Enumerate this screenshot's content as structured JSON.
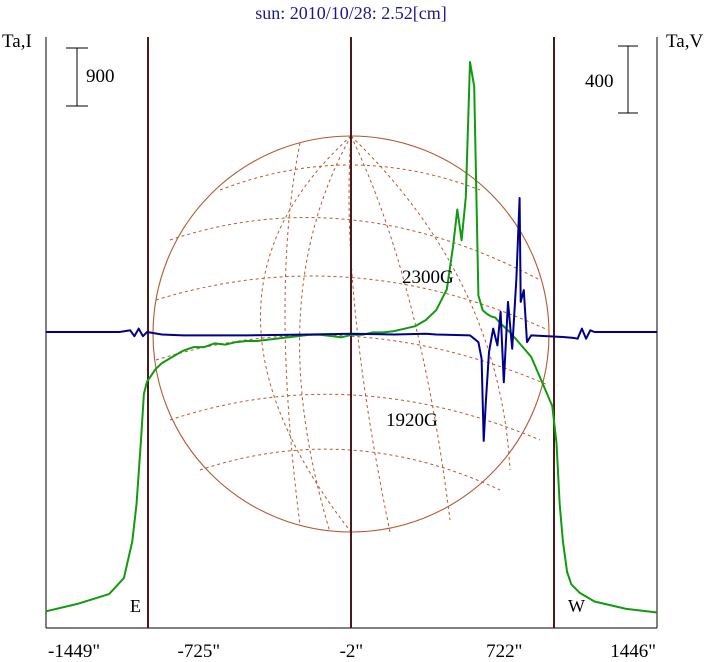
{
  "chart_data": {
    "type": "line",
    "title": "sun: 2010/10/28: 2.52[cm]",
    "left_axis_label": "Ta,I",
    "right_axis_label": "Ta,V",
    "scale_bars": {
      "left": "900",
      "right": "400"
    },
    "x_ticks": [
      "-1449\"",
      "-725\"",
      "-2\"",
      "722\"",
      "1446\""
    ],
    "x_range": [
      -1449,
      1446
    ],
    "limb_labels": {
      "east": "E",
      "west": "W"
    },
    "annotations": [
      {
        "text": "2300G",
        "x": 780,
        "sign": "positive"
      },
      {
        "text": "1920G",
        "x": 620,
        "sign": "negative"
      }
    ],
    "colors": {
      "title": "#1a1a8c",
      "intensity": "#109a10",
      "polarization": "#00008b",
      "grid_lines": "#4a1a1a",
      "sun_disk": "#b45a32",
      "axes": "#000000"
    },
    "series": [
      {
        "name": "Ta,I",
        "x": [
          -1449,
          -1300,
          -1150,
          -1080,
          -1040,
          -1020,
          -1000,
          -985,
          -970,
          -950,
          -930,
          -900,
          -850,
          -800,
          -750,
          -700,
          -650,
          -600,
          -550,
          -500,
          -450,
          -400,
          -350,
          -300,
          -250,
          -200,
          -150,
          -100,
          -50,
          0,
          50,
          100,
          150,
          200,
          250,
          300,
          350,
          400,
          450,
          480,
          500,
          520,
          540,
          560,
          580,
          600,
          620,
          640,
          660,
          680,
          700,
          750,
          800,
          850,
          900,
          950,
          970,
          985,
          1000,
          1020,
          1040,
          1080,
          1150,
          1300,
          1446
        ],
        "y": [
          30,
          90,
          170,
          300,
          600,
          900,
          1400,
          1800,
          1900,
          1950,
          2000,
          2050,
          2100,
          2150,
          2180,
          2180,
          2210,
          2200,
          2220,
          2230,
          2230,
          2240,
          2250,
          2260,
          2270,
          2280,
          2280,
          2270,
          2260,
          2280,
          2280,
          2300,
          2300,
          2310,
          2330,
          2350,
          2400,
          2480,
          2650,
          3000,
          3300,
          3050,
          3400,
          4500,
          4300,
          2600,
          2480,
          2450,
          2430,
          2420,
          2380,
          2300,
          2200,
          2100,
          1900,
          1700,
          1400,
          900,
          600,
          350,
          250,
          180,
          110,
          50,
          20
        ]
      },
      {
        "name": "Ta,V",
        "x": [
          -1449,
          -1100,
          -1050,
          -1030,
          -1010,
          -990,
          -970,
          -900,
          -800,
          -500,
          -200,
          0,
          200,
          350,
          400,
          560,
          580,
          600,
          615,
          625,
          635,
          650,
          670,
          690,
          705,
          720,
          740,
          760,
          780,
          795,
          800,
          815,
          830,
          850,
          1000,
          1050,
          1070,
          1090,
          1110,
          1130,
          1150,
          1446
        ],
        "y": [
          0,
          0,
          10,
          -25,
          20,
          -25,
          0,
          -15,
          -20,
          -20,
          -15,
          -10,
          -15,
          -10,
          -15,
          -20,
          -40,
          -60,
          -160,
          -650,
          -420,
          -120,
          20,
          -80,
          120,
          -300,
          180,
          -100,
          320,
          800,
          180,
          250,
          -60,
          -20,
          -30,
          -35,
          -40,
          20,
          -40,
          10,
          0,
          0
        ]
      }
    ]
  }
}
